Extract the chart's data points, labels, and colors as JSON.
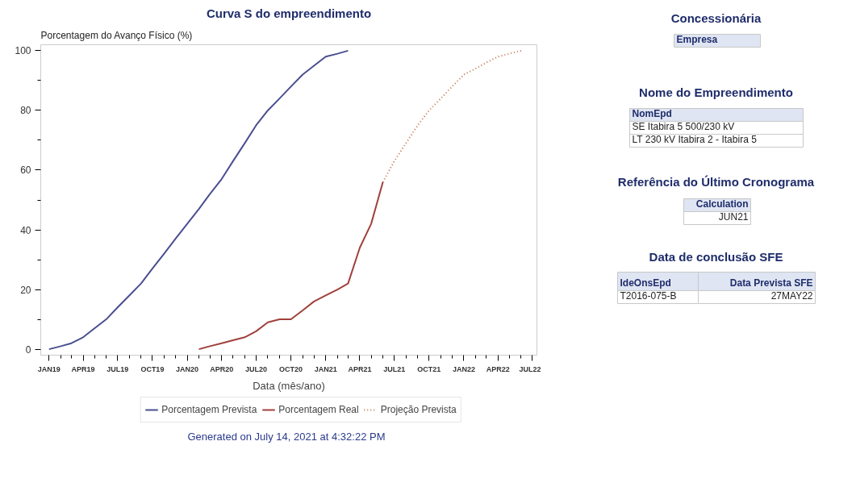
{
  "chart_data": [
    {
      "type": "line",
      "title": "Curva S do empreendimento",
      "xlabel": "Data (mês/ano)",
      "ylabel": "Porcentagem do Avanço Físico (%)",
      "xlim": [
        "2018-12-10",
        "2022-07-13"
      ],
      "ylim": [
        -2,
        102
      ],
      "xticks": [
        {
          "value": "2019-01",
          "label": "JAN19"
        },
        {
          "value": "2019-02",
          "label": null
        },
        {
          "value": "2019-03",
          "label": null
        },
        {
          "value": "2019-04",
          "label": "APR19"
        },
        {
          "value": "2019-05",
          "label": null
        },
        {
          "value": "2019-06",
          "label": null
        },
        {
          "value": "2019-07",
          "label": "JUL19"
        },
        {
          "value": "2019-08",
          "label": null
        },
        {
          "value": "2019-09",
          "label": null
        },
        {
          "value": "2019-10",
          "label": "OCT19"
        },
        {
          "value": "2019-11",
          "label": null
        },
        {
          "value": "2019-12",
          "label": null
        },
        {
          "value": "2020-01",
          "label": "JAN20"
        },
        {
          "value": "2020-02",
          "label": null
        },
        {
          "value": "2020-03",
          "label": null
        },
        {
          "value": "2020-04",
          "label": "APR20"
        },
        {
          "value": "2020-05",
          "label": null
        },
        {
          "value": "2020-06",
          "label": null
        },
        {
          "value": "2020-07",
          "label": "JUL20"
        },
        {
          "value": "2020-08",
          "label": null
        },
        {
          "value": "2020-09",
          "label": null
        },
        {
          "value": "2020-10",
          "label": "OCT20"
        },
        {
          "value": "2020-11",
          "label": null
        },
        {
          "value": "2020-12",
          "label": null
        },
        {
          "value": "2021-01",
          "label": "JAN21"
        },
        {
          "value": "2021-02",
          "label": null
        },
        {
          "value": "2021-03",
          "label": null
        },
        {
          "value": "2021-04",
          "label": "APR21"
        },
        {
          "value": "2021-05",
          "label": null
        },
        {
          "value": "2021-06",
          "label": null
        },
        {
          "value": "2021-07",
          "label": "JUL21"
        },
        {
          "value": "2021-08",
          "label": null
        },
        {
          "value": "2021-09",
          "label": null
        },
        {
          "value": "2021-10",
          "label": "OCT21"
        },
        {
          "value": "2021-11",
          "label": null
        },
        {
          "value": "2021-12",
          "label": null
        },
        {
          "value": "2022-01",
          "label": "JAN22"
        },
        {
          "value": "2022-02",
          "label": null
        },
        {
          "value": "2022-03",
          "label": null
        },
        {
          "value": "2022-04",
          "label": "APR22"
        },
        {
          "value": "2022-05",
          "label": null
        },
        {
          "value": "2022-06",
          "label": null
        },
        {
          "value": "2022-07",
          "label": "JUL22"
        }
      ],
      "yticks": [
        0,
        {
          "value": 10,
          "label": null
        },
        20,
        {
          "value": 30,
          "label": null
        },
        40,
        {
          "value": 50,
          "label": null
        },
        60,
        {
          "value": 70,
          "label": null
        },
        80,
        {
          "value": 90,
          "label": null
        },
        100
      ],
      "grid": false,
      "legend": "bottom",
      "line_style": "solid",
      "series": [
        {
          "name": "Porcentagem Prevista",
          "color": "#4a4f91",
          "x": [
            "2019-01",
            "2019-02",
            "2019-03",
            "2019-04",
            "2019-05",
            "2019-06",
            "2019-07",
            "2019-08",
            "2019-09",
            "2019-10",
            "2019-11",
            "2019-12",
            "2020-01",
            "2020-02",
            "2020-03",
            "2020-04",
            "2020-05",
            "2020-06",
            "2020-07",
            "2020-08",
            "2020-09",
            "2020-10",
            "2020-11",
            "2020-12",
            "2021-01",
            "2021-02",
            "2021-03"
          ],
          "values": [
            0,
            1,
            2,
            4,
            7,
            10,
            14,
            18,
            22,
            27,
            32,
            37,
            42,
            47,
            52,
            57,
            63,
            69,
            75,
            80,
            84,
            88,
            92,
            95,
            98,
            99,
            100
          ]
        },
        {
          "name": "Porcentagem Real",
          "color": "#a0403c",
          "x": [
            "2020-02",
            "2020-03",
            "2020-04",
            "2020-05",
            "2020-06",
            "2020-07",
            "2020-08",
            "2020-09",
            "2020-10",
            "2020-11",
            "2020-12",
            "2021-01",
            "2021-02",
            "2021-03",
            "2021-04",
            "2021-05",
            "2021-06"
          ],
          "values": [
            0,
            1,
            2,
            3,
            4,
            6,
            9,
            10,
            10,
            13,
            16,
            18,
            20,
            22,
            34,
            42,
            56
          ]
        },
        {
          "name": "Projeção Prevista",
          "color": "#c0704a",
          "line_style": "dotted",
          "x": [
            "2021-06",
            "2021-07",
            "2021-08",
            "2021-09",
            "2021-10",
            "2021-11",
            "2021-12",
            "2022-01",
            "2022-02",
            "2022-03",
            "2022-04",
            "2022-05",
            "2022-06"
          ],
          "values": [
            56,
            63,
            69,
            75,
            80,
            84,
            88,
            92,
            94,
            96,
            98,
            99,
            100
          ]
        }
      ],
      "annotations": [
        "Generated on July 14, 2021 at 4:32:22 PM"
      ]
    },
    {
      "type": "other",
      "annotations": [
        "Concessionária",
        "Empresa",
        "Nome do Empreendimento",
        "NomEpd",
        "SE Itabira 5 500/230 kV",
        "LT 230 kV Itabira 2 - Itabira 5",
        "Referência do Último Cronograma",
        "Calculation",
        "JUN21",
        "Data de conclusão SFE",
        "IdeOnsEpd",
        "Data Prevista SFE",
        "T2016-075-B",
        "27MAY22"
      ]
    }
  ]
}
